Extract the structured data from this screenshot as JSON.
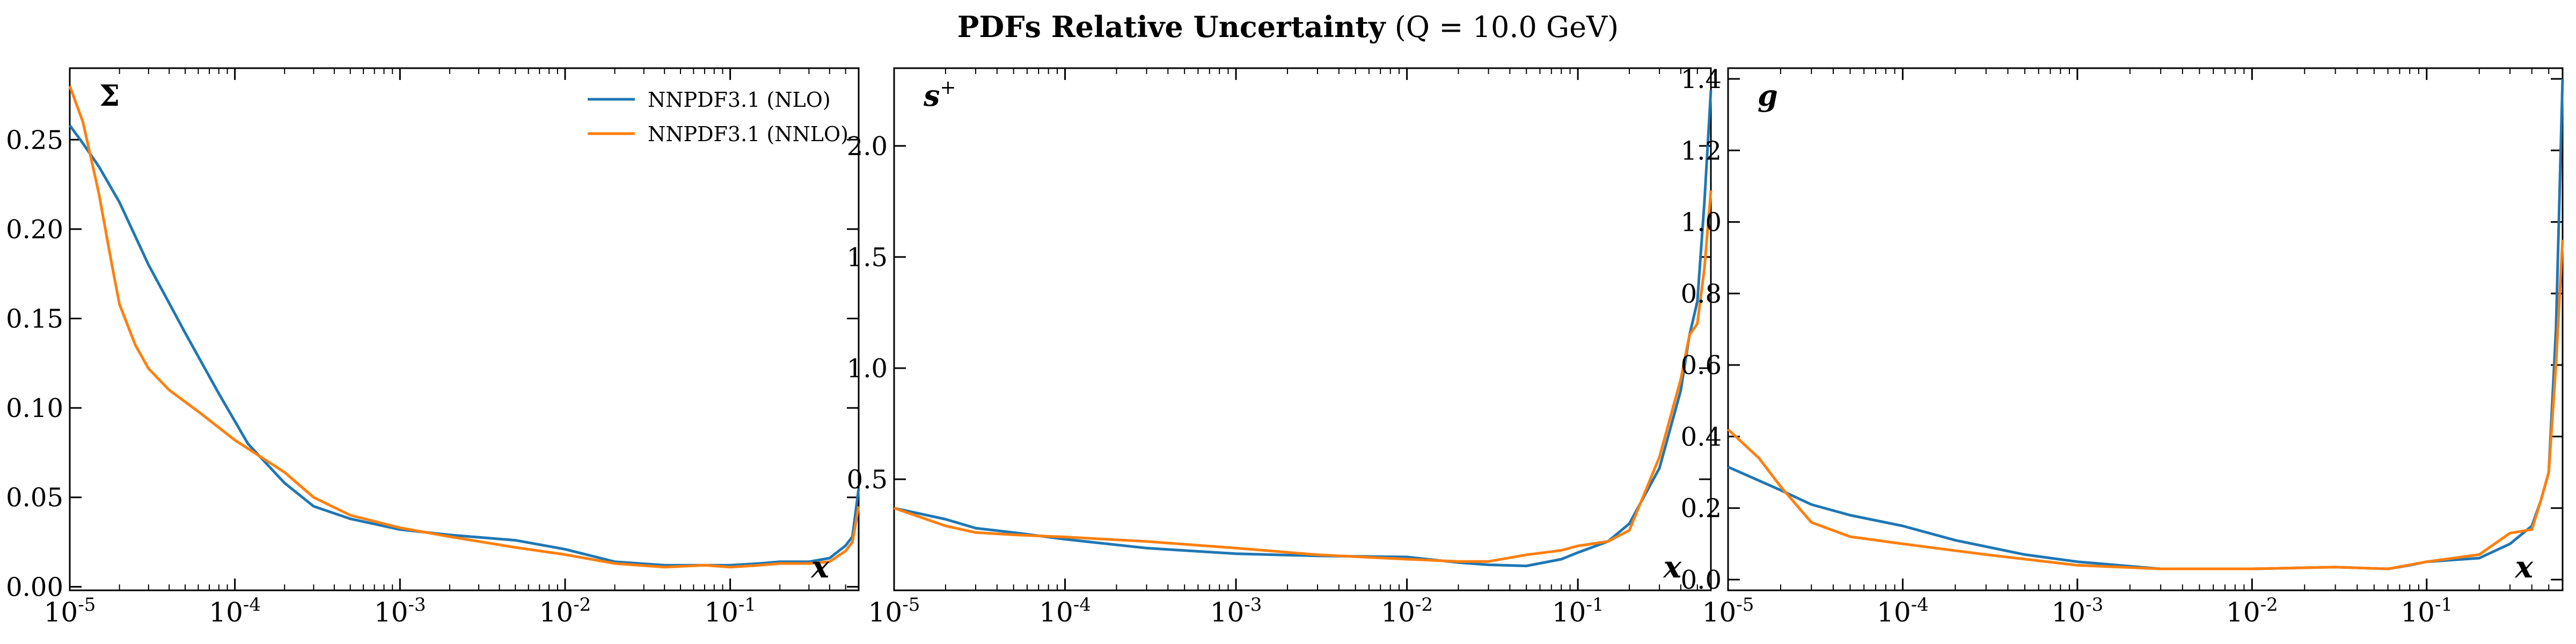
{
  "figure": {
    "title_bold": "PDFs Relative Uncertainty",
    "title_rest": "(Q = 10.0 GeV)"
  },
  "colors": {
    "nlo": "#1f77b4",
    "nnlo": "#ff7f0e",
    "axis": "#000000"
  },
  "chart_data": [
    {
      "type": "line",
      "panel_label": "Σ",
      "xlabel": "x",
      "xscale": "log",
      "xlim": [
        1e-05,
        0.6
      ],
      "ylim": [
        -0.002,
        0.29
      ],
      "xticks": [
        1e-05,
        0.0001,
        0.001,
        0.01,
        0.1
      ],
      "xtick_labels": [
        "10^-5",
        "10^-4",
        "10^-3",
        "10^-2",
        "10^-1"
      ],
      "yticks": [
        0.0,
        0.05,
        0.1,
        0.15,
        0.2,
        0.25
      ],
      "ytick_labels": [
        "0.00",
        "0.05",
        "0.10",
        "0.15",
        "0.20",
        "0.25"
      ],
      "legend": "top-right",
      "series": [
        {
          "name": "NNPDF3.1 (NLO)",
          "color": "#1f77b4",
          "x": [
            1e-05,
            1.2e-05,
            1.5e-05,
            2e-05,
            3e-05,
            5e-05,
            8e-05,
            0.00012,
            0.0002,
            0.0003,
            0.0005,
            0.001,
            0.002,
            0.005,
            0.01,
            0.02,
            0.04,
            0.07,
            0.1,
            0.15,
            0.2,
            0.3,
            0.4,
            0.5,
            0.55,
            0.6
          ],
          "y": [
            0.258,
            0.248,
            0.235,
            0.215,
            0.18,
            0.142,
            0.108,
            0.08,
            0.058,
            0.045,
            0.038,
            0.032,
            0.029,
            0.026,
            0.021,
            0.014,
            0.012,
            0.012,
            0.012,
            0.013,
            0.014,
            0.014,
            0.016,
            0.023,
            0.028,
            0.055
          ]
        },
        {
          "name": "NNPDF3.1 (NNLO)",
          "color": "#ff7f0e",
          "x": [
            1e-05,
            1.2e-05,
            1.5e-05,
            1.8e-05,
            2e-05,
            2.5e-05,
            3e-05,
            4e-05,
            6e-05,
            0.0001,
            0.0002,
            0.0003,
            0.0005,
            0.001,
            0.002,
            0.005,
            0.01,
            0.02,
            0.04,
            0.07,
            0.1,
            0.15,
            0.2,
            0.3,
            0.4,
            0.5,
            0.55,
            0.6
          ],
          "y": [
            0.28,
            0.26,
            0.22,
            0.18,
            0.158,
            0.135,
            0.122,
            0.11,
            0.098,
            0.082,
            0.064,
            0.05,
            0.04,
            0.033,
            0.028,
            0.022,
            0.018,
            0.013,
            0.011,
            0.012,
            0.011,
            0.012,
            0.013,
            0.013,
            0.014,
            0.02,
            0.025,
            0.045
          ]
        }
      ]
    },
    {
      "type": "line",
      "panel_label": "s+",
      "xlabel": "x",
      "xscale": "log",
      "xlim": [
        1e-05,
        0.6
      ],
      "ylim": [
        0.0,
        2.35
      ],
      "xticks": [
        1e-05,
        0.0001,
        0.001,
        0.01,
        0.1
      ],
      "xtick_labels": [
        "10^-5",
        "10^-4",
        "10^-3",
        "10^-2",
        "10^-1"
      ],
      "yticks": [
        0.5,
        1.0,
        1.5,
        2.0
      ],
      "ytick_labels": [
        "0.5",
        "1.0",
        "1.5",
        "2.0"
      ],
      "series": [
        {
          "name": "NNPDF3.1 (NLO)",
          "color": "#1f77b4",
          "x": [
            1e-05,
            2e-05,
            3e-05,
            5e-05,
            0.0001,
            0.0003,
            0.001,
            0.003,
            0.01,
            0.02,
            0.03,
            0.05,
            0.08,
            0.1,
            0.15,
            0.2,
            0.3,
            0.4,
            0.45,
            0.5,
            0.55,
            0.6
          ],
          "y": [
            0.37,
            0.32,
            0.28,
            0.26,
            0.23,
            0.19,
            0.165,
            0.155,
            0.15,
            0.125,
            0.115,
            0.11,
            0.14,
            0.17,
            0.22,
            0.3,
            0.55,
            0.9,
            1.15,
            1.3,
            1.75,
            2.25
          ]
        },
        {
          "name": "NNPDF3.1 (NNLO)",
          "color": "#ff7f0e",
          "x": [
            1e-05,
            2e-05,
            3e-05,
            5e-05,
            0.0001,
            0.0003,
            0.001,
            0.003,
            0.01,
            0.02,
            0.03,
            0.05,
            0.08,
            0.1,
            0.15,
            0.2,
            0.3,
            0.4,
            0.45,
            0.5,
            0.55,
            0.6
          ],
          "y": [
            0.37,
            0.29,
            0.26,
            0.25,
            0.24,
            0.22,
            0.19,
            0.16,
            0.14,
            0.13,
            0.13,
            0.16,
            0.18,
            0.2,
            0.22,
            0.27,
            0.6,
            0.95,
            1.15,
            1.2,
            1.45,
            1.8
          ]
        }
      ]
    },
    {
      "type": "line",
      "panel_label": "g",
      "xlabel": "x",
      "xscale": "log",
      "xlim": [
        1e-05,
        0.6
      ],
      "ylim": [
        -0.03,
        1.43
      ],
      "xticks": [
        1e-05,
        0.0001,
        0.001,
        0.01,
        0.1
      ],
      "xtick_labels": [
        "10^-5",
        "10^-4",
        "10^-3",
        "10^-2",
        "10^-1"
      ],
      "yticks": [
        0.0,
        0.2,
        0.4,
        0.6,
        0.8,
        1.0,
        1.2,
        1.4
      ],
      "ytick_labels": [
        "0.0",
        "0.2",
        "0.4",
        "0.6",
        "0.8",
        "1.0",
        "1.2",
        "1.4"
      ],
      "series": [
        {
          "name": "NNPDF3.1 (NLO)",
          "color": "#1f77b4",
          "x": [
            1e-05,
            2e-05,
            3e-05,
            5e-05,
            0.0001,
            0.0002,
            0.0005,
            0.001,
            0.003,
            0.01,
            0.03,
            0.06,
            0.08,
            0.1,
            0.2,
            0.3,
            0.4,
            0.45,
            0.5,
            0.55,
            0.6
          ],
          "y": [
            0.315,
            0.25,
            0.21,
            0.18,
            0.15,
            0.11,
            0.07,
            0.05,
            0.03,
            0.03,
            0.035,
            0.03,
            0.04,
            0.05,
            0.06,
            0.1,
            0.15,
            0.22,
            0.3,
            0.7,
            1.4
          ]
        },
        {
          "name": "NNPDF3.1 (NNLO)",
          "color": "#ff7f0e",
          "x": [
            1e-05,
            1.5e-05,
            2e-05,
            3e-05,
            5e-05,
            0.0001,
            0.0003,
            0.001,
            0.003,
            0.01,
            0.03,
            0.06,
            0.1,
            0.2,
            0.3,
            0.4,
            0.45,
            0.5,
            0.55,
            0.6
          ],
          "y": [
            0.42,
            0.34,
            0.26,
            0.16,
            0.12,
            0.1,
            0.07,
            0.04,
            0.03,
            0.03,
            0.035,
            0.03,
            0.05,
            0.07,
            0.13,
            0.14,
            0.22,
            0.3,
            0.6,
            0.95
          ]
        }
      ]
    }
  ]
}
